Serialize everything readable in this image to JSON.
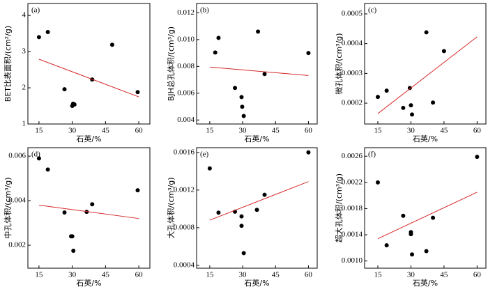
{
  "chart_data": [
    {
      "type": "scatter",
      "label": "(a)",
      "xlabel": "石英/%",
      "ylabel": "BET比表面积/(cm²/g)",
      "x": [
        15,
        19,
        26.5,
        30,
        30.4,
        31,
        39,
        48,
        59.5
      ],
      "values": [
        3.4,
        3.54,
        1.96,
        1.5,
        1.56,
        1.54,
        2.23,
        3.19,
        1.88
      ],
      "color": "#000000",
      "trend": {
        "x": [
          15,
          60
        ],
        "values": [
          2.79,
          1.75
        ],
        "color": "#d62728"
      },
      "xlim": [
        10,
        65
      ],
      "ylim": [
        1,
        4.33
      ],
      "xticks": [
        15,
        30,
        45,
        60
      ],
      "yticks": [
        1,
        2,
        3,
        4
      ]
    },
    {
      "type": "scatter",
      "label": "(b)",
      "xlabel": "石英/%",
      "ylabel": "BJH总孔体积/(cm³/g)",
      "x": [
        19,
        17.5,
        26.5,
        29.5,
        29.8,
        30.5,
        37,
        40,
        60
      ],
      "values": [
        0.01013,
        0.00904,
        0.00639,
        0.00571,
        0.00499,
        0.0043,
        0.0106,
        0.00743,
        0.009
      ],
      "color": "#000000",
      "trend": {
        "x": [
          15,
          60
        ],
        "values": [
          0.00795,
          0.00732
        ],
        "color": "#d62728"
      },
      "xlim": [
        9,
        64
      ],
      "ylim": [
        0.0037,
        0.0127
      ],
      "xticks": [
        15,
        30,
        45,
        60
      ],
      "yticks": [
        {
          "value": 0.004,
          "label": "0.004"
        },
        {
          "value": 0.006,
          "label": "0.006"
        },
        {
          "value": 0.008,
          "label": "0.008"
        },
        {
          "value": 0.01,
          "label": "0.010"
        },
        {
          "value": 0.012,
          "label": "0.012"
        }
      ]
    },
    {
      "type": "scatter",
      "label": "(c)",
      "xlabel": "石英/%",
      "ylabel": "微孔体积/(cm³/g)",
      "x": [
        15,
        19,
        26.5,
        29.5,
        30,
        30.5,
        37,
        40,
        45
      ],
      "values": [
        0.000221,
        0.000242,
        0.000184,
        0.000251,
        0.000193,
        0.000162,
        0.000438,
        0.000202,
        0.000375
      ],
      "color": "#000000",
      "trend": {
        "x": [
          15,
          60
        ],
        "values": [
          0.000165,
          0.000423
        ],
        "color": "#d62728"
      },
      "xlim": [
        9,
        64
      ],
      "ylim": [
        0.00013,
        0.000535
      ],
      "xticks": [
        15,
        30,
        45,
        60
      ],
      "yticks": [
        0.0002,
        0.0003,
        0.0004,
        0.0005
      ]
    },
    {
      "type": "scatter",
      "label": "(d)",
      "xlabel": "石英/%",
      "ylabel": "中孔体积/(cm³/g)",
      "x": [
        15,
        19,
        26.5,
        29.5,
        30,
        30.5,
        36.5,
        39,
        59.5
      ],
      "values": [
        0.0059,
        0.0054,
        0.00347,
        0.0024,
        0.0024,
        0.00175,
        0.0035,
        0.00384,
        0.00447
      ],
      "color": "#000000",
      "trend": {
        "x": [
          15,
          60
        ],
        "values": [
          0.0038,
          0.0032
        ],
        "color": "#d62728"
      },
      "xlim": [
        10,
        65
      ],
      "ylim": [
        0.00097,
        0.00638
      ],
      "xticks": [
        15,
        30,
        45,
        60
      ],
      "yticks": [
        0.002,
        0.004,
        0.006
      ]
    },
    {
      "type": "scatter",
      "label": "(e)",
      "xlabel": "石英/%",
      "ylabel": "大孔体积/(cm³/g)",
      "x": [
        15,
        19,
        26.5,
        29.5,
        29.5,
        30.5,
        36.5,
        40,
        60
      ],
      "values": [
        0.00143,
        0.00096,
        0.00097,
        0.00092,
        0.00082,
        0.00053,
        0.00099,
        0.00115,
        0.0016
      ],
      "color": "#000000",
      "trend": {
        "x": [
          15,
          60
        ],
        "values": [
          0.00088,
          0.00129
        ],
        "color": "#d62728"
      },
      "xlim": [
        9,
        64
      ],
      "ylim": [
        0.00037,
        0.00165
      ],
      "xticks": [
        15,
        30,
        45,
        60
      ],
      "yticks": [
        0.0004,
        0.0008,
        0.0012,
        0.0016
      ]
    },
    {
      "type": "scatter",
      "label": "(f)",
      "xlabel": "石英/%",
      "ylabel": "超大孔体积/(cm³/g)",
      "x": [
        15,
        19,
        26.5,
        30,
        30,
        30.5,
        37,
        40,
        60
      ],
      "values": [
        0.0022,
        0.00124,
        0.00169,
        0.00141,
        0.00144,
        0.0011,
        0.00115,
        0.00166,
        0.00259
      ],
      "color": "#000000",
      "trend": {
        "x": [
          15,
          60
        ],
        "values": [
          0.00134,
          0.00205
        ],
        "color": "#d62728"
      },
      "xlim": [
        9,
        64
      ],
      "ylim": [
        0.00089,
        0.00273
      ],
      "xticks": [
        15,
        30,
        45,
        60
      ],
      "yticks": [
        {
          "value": 0.001,
          "label": "0.0010"
        },
        0.0014,
        0.0018,
        0.0022,
        0.0026
      ]
    }
  ]
}
